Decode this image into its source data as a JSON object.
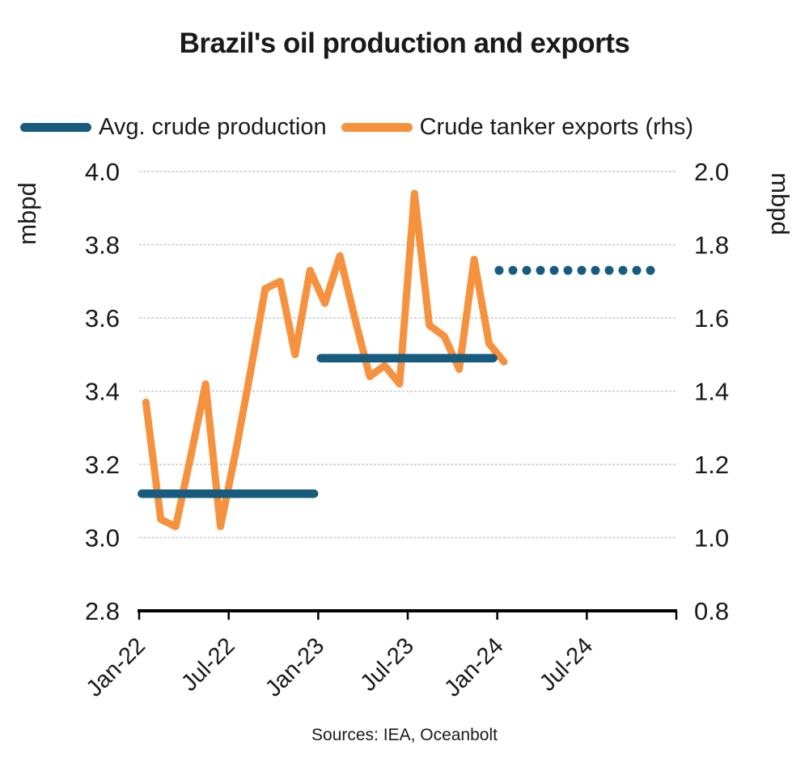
{
  "title": "Brazil's oil production and exports",
  "legend": {
    "production_label": "Avg. crude production",
    "exports_label": "Crude tanker exports (rhs)"
  },
  "footer": {
    "sources": "Sources: IEA, Oceanbolt"
  },
  "colors": {
    "production_blue": "#175B7E",
    "exports_orange": "#F6913E",
    "gridline_gray": "#C9C9C9",
    "axis_black": "#000000",
    "text_dark": "#1A1A1A"
  },
  "chart_data": {
    "type": "line",
    "title": "Brazil's oil production and exports",
    "x_tick_labels": [
      "Jan-22",
      "Jul-22",
      "Jan-23",
      "Jul-23",
      "Jan-24",
      "Jul-24"
    ],
    "left_axis": {
      "label": "mbpd",
      "range": [
        2.8,
        4.0
      ],
      "ticks": [
        2.8,
        3.0,
        3.2,
        3.4,
        3.6,
        3.8,
        4.0
      ],
      "gridlines": [
        3.0,
        3.2,
        3.4,
        3.6,
        3.8,
        4.0
      ]
    },
    "right_axis": {
      "label": "mbpd",
      "range": [
        0.8,
        2.0
      ],
      "ticks": [
        0.8,
        1.0,
        1.2,
        1.4,
        1.6,
        1.8,
        2.0
      ]
    },
    "series": [
      {
        "name": "Crude tanker exports (rhs)",
        "axis": "right",
        "type": "line",
        "color_key": "exports_orange",
        "x": [
          "Jan-22",
          "Feb-22",
          "Mar-22",
          "Apr-22",
          "May-22",
          "Jun-22",
          "Jul-22",
          "Aug-22",
          "Sep-22",
          "Oct-22",
          "Nov-22",
          "Dec-22",
          "Jan-23",
          "Feb-23",
          "Mar-23",
          "Apr-23",
          "May-23",
          "Jun-23",
          "Jul-23",
          "Aug-23",
          "Sep-23",
          "Oct-23",
          "Nov-23",
          "Dec-23",
          "Jan-24"
        ],
        "values": [
          1.37,
          1.05,
          1.03,
          1.22,
          1.42,
          1.03,
          1.23,
          1.45,
          1.68,
          1.7,
          1.5,
          1.73,
          1.64,
          1.77,
          1.6,
          1.44,
          1.47,
          1.42,
          1.94,
          1.58,
          1.55,
          1.46,
          1.76,
          1.53,
          1.48
        ]
      },
      {
        "name": "Avg. crude production",
        "axis": "left",
        "type": "step-segments",
        "color_key": "production_blue",
        "segments": [
          {
            "from": "Jan-22",
            "to": "Dec-22",
            "value": 3.12
          },
          {
            "from": "Jan-23",
            "to": "Dec-23",
            "value": 3.49
          }
        ]
      },
      {
        "name": "Avg. crude production (forecast, dotted)",
        "axis": "left",
        "type": "dotted-segment",
        "color_key": "production_blue",
        "segments": [
          {
            "from": "Jan-24",
            "to": "Nov-24",
            "value": 3.73
          }
        ]
      }
    ]
  }
}
